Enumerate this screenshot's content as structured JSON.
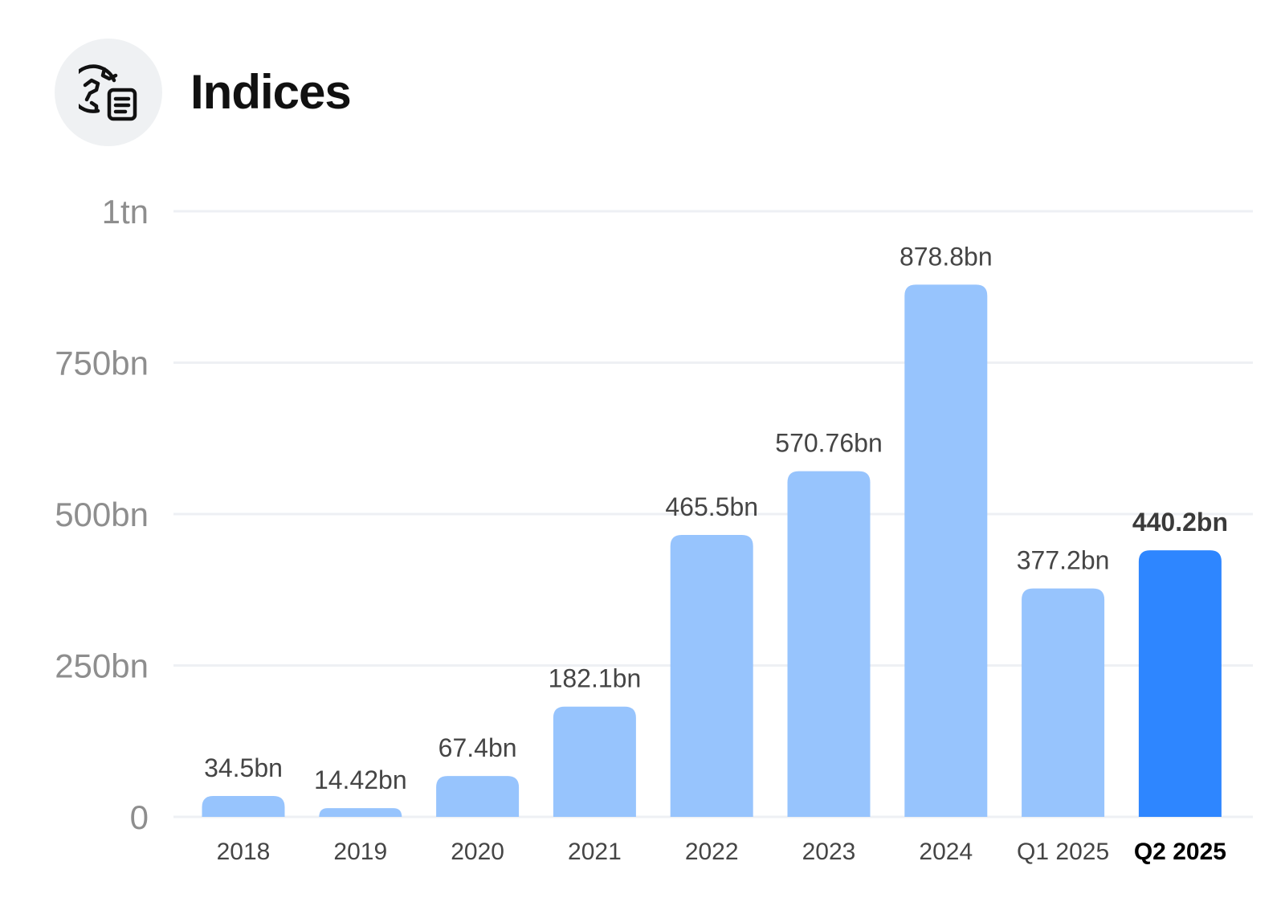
{
  "header": {
    "title": "Indices",
    "icon": "globe-document-icon"
  },
  "colors": {
    "bar": "#97c4fd",
    "bar_highlight": "#2e86ff",
    "grid": "#eef0f4",
    "icon_bg": "#eff1f3"
  },
  "chart_data": {
    "type": "bar",
    "title": "Indices",
    "xlabel": "",
    "ylabel": "",
    "categories": [
      "2018",
      "2019",
      "2020",
      "2021",
      "2022",
      "2023",
      "2024",
      "Q1 2025",
      "Q2 2025"
    ],
    "values": [
      34.5,
      14.42,
      67.4,
      182.1,
      465.5,
      570.76,
      878.8,
      377.2,
      440.2
    ],
    "value_labels": [
      "34.5bn",
      "14.42bn",
      "67.4bn",
      "182.1bn",
      "465.5bn",
      "570.76bn",
      "878.8bn",
      "377.2bn",
      "440.2bn"
    ],
    "highlight_index": 8,
    "unit": "bn",
    "ylim": [
      0,
      1000
    ],
    "yticks": [
      0,
      250,
      500,
      750,
      1000
    ],
    "ytick_labels": [
      "0",
      "250bn",
      "500bn",
      "750bn",
      "1tn"
    ],
    "grid": true,
    "legend": "none"
  }
}
